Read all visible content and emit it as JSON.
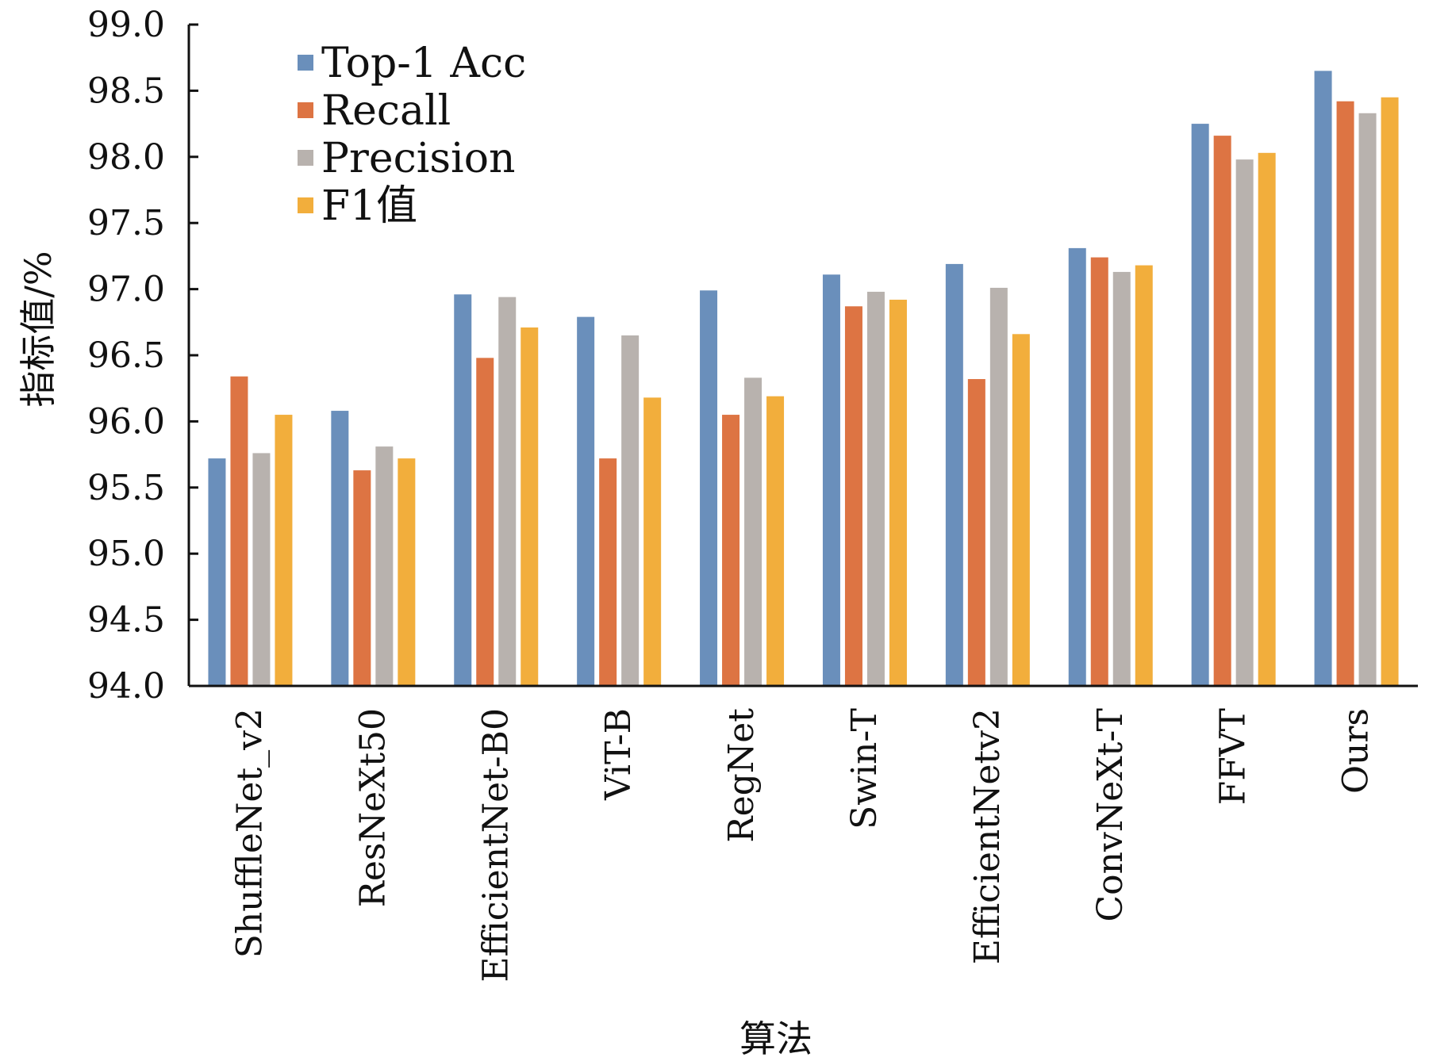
{
  "chart_data": {
    "type": "bar",
    "title": "",
    "xlabel": "算法",
    "ylabel": "指标值/%",
    "ylim": [
      94.0,
      99.0
    ],
    "yticks": [
      "94.0",
      "94.5",
      "95.0",
      "95.5",
      "96.0",
      "96.5",
      "97.0",
      "97.5",
      "98.0",
      "98.5",
      "99.0"
    ],
    "grid": false,
    "legend_position": "top-left",
    "categories": [
      "ShuffleNet_v2",
      "ResNeXt50",
      "EfficientNet-B0",
      "ViT-B",
      "RegNet",
      "Swin-T",
      "EfficientNetv2",
      "ConvNeXt-T",
      "FFVT",
      "Ours"
    ],
    "series": [
      {
        "name": "Top-1 Acc",
        "color": "#6a8fbb",
        "values": [
          95.72,
          96.08,
          96.96,
          96.79,
          96.99,
          97.11,
          97.19,
          97.31,
          98.25,
          98.65
        ]
      },
      {
        "name": "Recall",
        "color": "#dd7443",
        "values": [
          96.34,
          95.63,
          96.48,
          95.72,
          96.05,
          96.87,
          96.32,
          97.24,
          98.16,
          98.42
        ]
      },
      {
        "name": "Precision",
        "color": "#b8b2ae",
        "values": [
          95.76,
          95.81,
          96.94,
          96.65,
          96.33,
          96.98,
          97.01,
          97.13,
          97.98,
          98.33
        ]
      },
      {
        "name": "F1值",
        "color": "#f2ae3c",
        "values": [
          96.05,
          95.72,
          96.71,
          96.18,
          96.19,
          96.92,
          96.66,
          97.18,
          98.03,
          98.45
        ]
      }
    ]
  }
}
